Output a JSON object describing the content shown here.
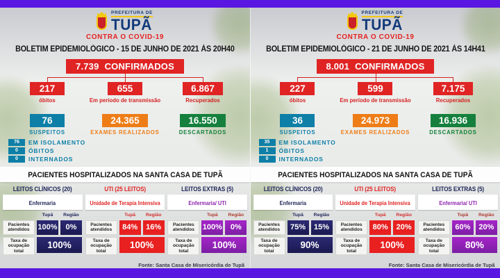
{
  "theme": {
    "bar_purple": "#5a17e2",
    "red": "#e02424",
    "teal": "#0e7fa7",
    "orange": "#ee7d17",
    "green": "#15803d",
    "navy": "#1d2357",
    "purple": "#8e22ae",
    "logo_navy": "#123a7a",
    "logo_yellow": "#f2c80f"
  },
  "panels": [
    {
      "logo": {
        "top": "PREFEITURA DE",
        "city": "TUPÃ",
        "slogan": "CONTRA O COVID-19"
      },
      "bulletin_title": "BOLETIM EPIDEMIOLÓGICO - 15 DE JUNHO DE 2021 ÀS 20H40",
      "confirmed": {
        "value": "7.739",
        "label": "CONFIRMADOS"
      },
      "branches": [
        {
          "value": "217",
          "label": "óbitos"
        },
        {
          "value": "655",
          "label": "Em período de transmissão"
        },
        {
          "value": "6.867",
          "label": "Recuperados"
        }
      ],
      "stats": [
        {
          "value": "76",
          "label": "SUSPEITOS"
        },
        {
          "value": "24.365",
          "label": "EXAMES REALIZADOS"
        },
        {
          "value": "16.550",
          "label": "DESCARTADOS"
        }
      ],
      "suspects_detail": [
        {
          "value": "76",
          "label": "EM ISOLAMENTO"
        },
        {
          "value": "0",
          "label": "ÓBITOS"
        },
        {
          "value": "0",
          "label": "INTERNADOS"
        }
      ],
      "hospital": {
        "title": "PACIENTES HOSPITALIZADOS NA SANTA CASA DE TUPÃ",
        "columns": [
          {
            "header": "LEITOS CLÍNICOS (20)",
            "subheader": "Enfermaria",
            "tupa_label": "Tupã",
            "regiao_label": "Região",
            "row1_label": "Pacientes atendidos",
            "tupa": "100%",
            "regiao": "0%",
            "row2_label": "Taxa de ocupação total",
            "taxa": "100%"
          },
          {
            "header": "UTI (25 LEITOS)",
            "subheader": "Unidade de Terapia Intensiva",
            "tupa_label": "Tupã",
            "regiao_label": "Região",
            "row1_label": "Pacientes atendidos",
            "tupa": "84%",
            "regiao": "16%",
            "row2_label": "Taxa de ocupação total",
            "taxa": "100%"
          },
          {
            "header": "LEITOS EXTRAS (5)",
            "subheader": "Enfermaria/ UTI",
            "tupa_label": "Tupã",
            "regiao_label": "Região",
            "row1_label": "Pacientes atendidos",
            "tupa": "100%",
            "regiao": "0%",
            "row2_label": "Taxa de ocupação total",
            "taxa": "100%"
          }
        ],
        "source": "Fonte: Santa Casa de Misericórdia de Tupã"
      }
    },
    {
      "logo": {
        "top": "PREFEITURA DE",
        "city": "TUPÃ",
        "slogan": "CONTRA O COVID-19"
      },
      "bulletin_title": "BOLETIM EPIDEMIOLÓGICO - 21 DE JUNHO DE 2021 ÀS 14H41",
      "confirmed": {
        "value": "8.001",
        "label": "CONFIRMADOS"
      },
      "branches": [
        {
          "value": "227",
          "label": "óbitos"
        },
        {
          "value": "599",
          "label": "Em período de transmissão"
        },
        {
          "value": "7.175",
          "label": "Recuperados"
        }
      ],
      "stats": [
        {
          "value": "36",
          "label": "SUSPEITOS"
        },
        {
          "value": "24.973",
          "label": "EXAMES REALIZADOS"
        },
        {
          "value": "16.936",
          "label": "DESCARTADOS"
        }
      ],
      "suspects_detail": [
        {
          "value": "35",
          "label": "EM ISOLAMENTO"
        },
        {
          "value": "1",
          "label": "ÓBITOS"
        },
        {
          "value": "0",
          "label": "INTERNADOS"
        }
      ],
      "hospital": {
        "title": "PACIENTES HOSPITALIZADOS NA SANTA CASA DE TUPÃ",
        "columns": [
          {
            "header": "LEITOS CLÍNICOS (20)",
            "subheader": "Enfermaria",
            "tupa_label": "Tupã",
            "regiao_label": "Região",
            "row1_label": "Pacientes atendidos",
            "tupa": "75%",
            "regiao": "15%",
            "row2_label": "Taxa de ocupação total",
            "taxa": "90%"
          },
          {
            "header": "UTI (25 LEITOS)",
            "subheader": "Unidade de Terapia Intensiva",
            "tupa_label": "Tupã",
            "regiao_label": "Região",
            "row1_label": "Pacientes atendidos",
            "tupa": "80%",
            "regiao": "20%",
            "row2_label": "Taxa de ocupação total",
            "taxa": "100%"
          },
          {
            "header": "LEITOS EXTRAS (5)",
            "subheader": "Enfermaria/ UTI",
            "tupa_label": "Tupã",
            "regiao_label": "Região",
            "row1_label": "Pacientes atendidos",
            "tupa": "60%",
            "regiao": "20%",
            "row2_label": "Taxa de ocupação total",
            "taxa": "80%"
          }
        ],
        "source": "Fonte: Santa Casa de Misericórdia de Tupã"
      }
    }
  ]
}
